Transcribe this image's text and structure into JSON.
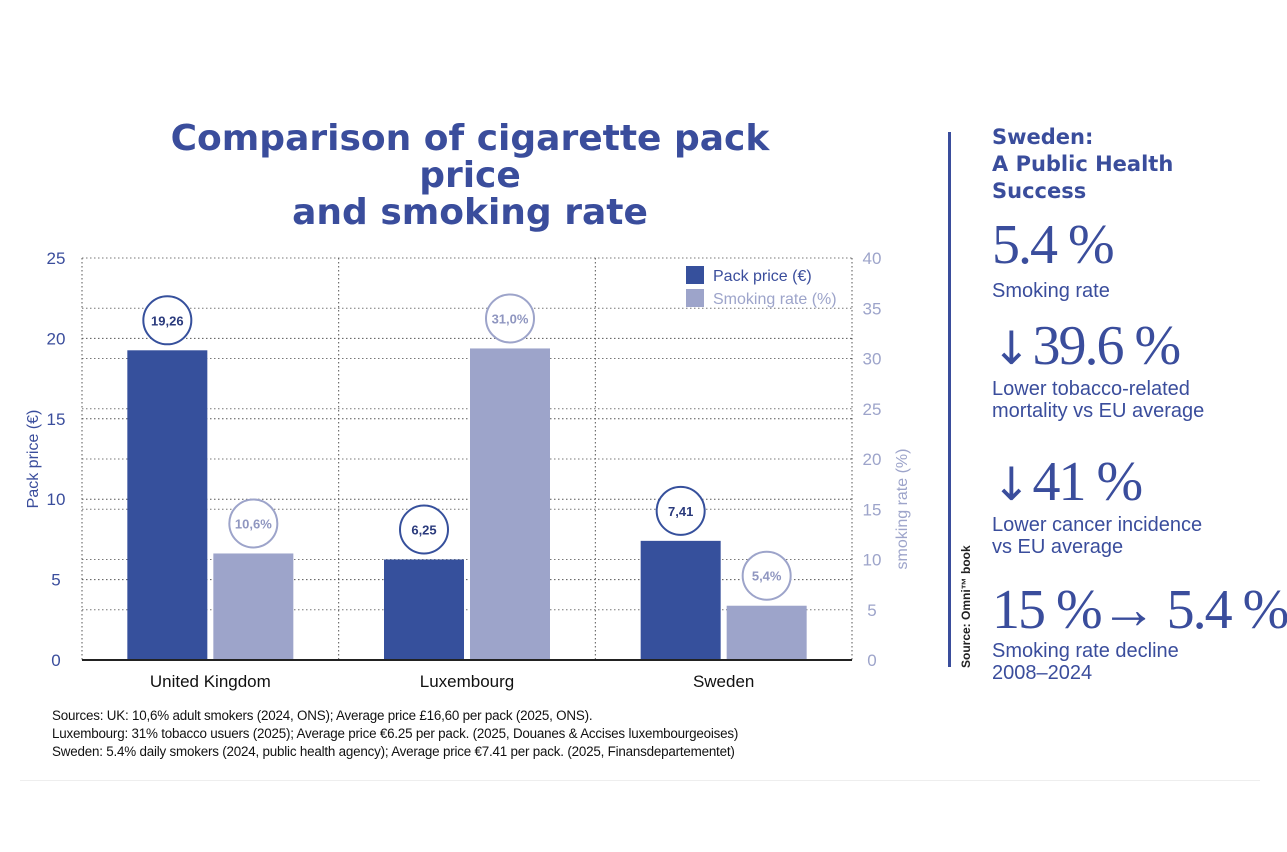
{
  "chart_data": {
    "type": "bar",
    "title_lines": [
      "Comparison of cigarette pack price",
      "and smoking rate"
    ],
    "categories": [
      "United Kingdom",
      "Luxembourg",
      "Sweden"
    ],
    "series": [
      {
        "name": "Pack price (€)",
        "values": [
          19.26,
          6.25,
          7.41
        ],
        "labels": [
          "19,26",
          "6,25",
          "7,41"
        ],
        "color": "#36509c",
        "axis": "left"
      },
      {
        "name": "Smoking rate (%)",
        "values": [
          10.6,
          31.0,
          5.4
        ],
        "labels": [
          "10,6%",
          "31,0%",
          "5,4%"
        ],
        "color": "#9da4ca",
        "axis": "right"
      }
    ],
    "ylabel": "Pack price (€)",
    "y2label": "smoking rate (%)",
    "ylim": [
      0,
      25
    ],
    "y2lim": [
      0,
      40
    ],
    "yticks": [
      "0",
      "5",
      "10",
      "15",
      "20",
      "25"
    ],
    "y2ticks": [
      "0",
      "5",
      "10",
      "15",
      "20",
      "25",
      "30",
      "35",
      "40"
    ],
    "grid": "dotted",
    "legend": "top-right"
  },
  "sources": [
    "Sources: UK: 10,6% adult smokers (2024, ONS); Average price £16,60 per pack (2025, ONS).",
    "Luxembourg: 31% tobacco usuers (2025); Average price €6.25 per pack. (2025, Douanes & Accises luxembourgeoises)",
    "Sweden: 5.4% daily smokers (2024, public health agency); Average price €7.41 per pack. (2025, Finansdepartementet)"
  ],
  "credit": "Source: Omni™ book",
  "side": {
    "heading_lines": [
      "Sweden:",
      "A Public Health Success"
    ],
    "stats": [
      {
        "value": "5.4 %",
        "label_lines": [
          "Smoking rate"
        ]
      },
      {
        "arrow": "↓",
        "value": "39.6 %",
        "label_lines": [
          "Lower tobacco-related",
          "mortality vs EU average"
        ]
      },
      {
        "arrow": "↓",
        "value": "41 %",
        "label_lines": [
          "Lower cancer incidence",
          "vs EU average"
        ]
      },
      {
        "value": "15 %→ 5.4 %",
        "label_lines": [
          "Smoking rate decline",
          "2008–2024"
        ]
      }
    ]
  }
}
